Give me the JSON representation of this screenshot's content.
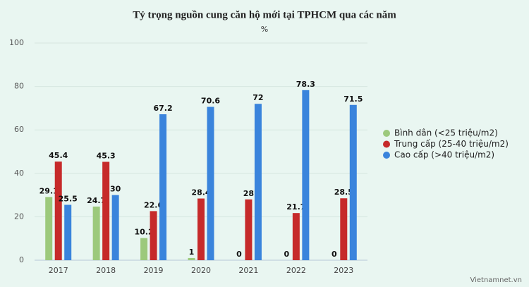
{
  "chart_data": {
    "type": "bar",
    "title": "Tỷ trọng nguồn cung căn hộ mới tại TPHCM qua các năm",
    "subtitle": "%",
    "categories": [
      "2017",
      "2018",
      "2019",
      "2020",
      "2021",
      "2022",
      "2023"
    ],
    "series": [
      {
        "name": "Bình dân (<25 triệu/m2)",
        "color": "#9cc97c",
        "values": [
          29.1,
          24.7,
          10.2,
          1,
          0,
          0,
          0
        ]
      },
      {
        "name": "Trung cấp (25-40 triệu/m2)",
        "color": "#c62a2a",
        "values": [
          45.4,
          45.3,
          22.6,
          28.4,
          28,
          21.7,
          28.5
        ]
      },
      {
        "name": "Cao cấp (>40 triệu/m2)",
        "color": "#3a84dc",
        "values": [
          25.5,
          30,
          67.2,
          70.6,
          72,
          78.3,
          71.5
        ]
      }
    ],
    "ylim": [
      0,
      100
    ],
    "yticks": [
      0,
      20,
      40,
      60,
      80,
      100
    ],
    "grid": true,
    "legend": "right",
    "credit": "Vietnamnet.vn"
  }
}
